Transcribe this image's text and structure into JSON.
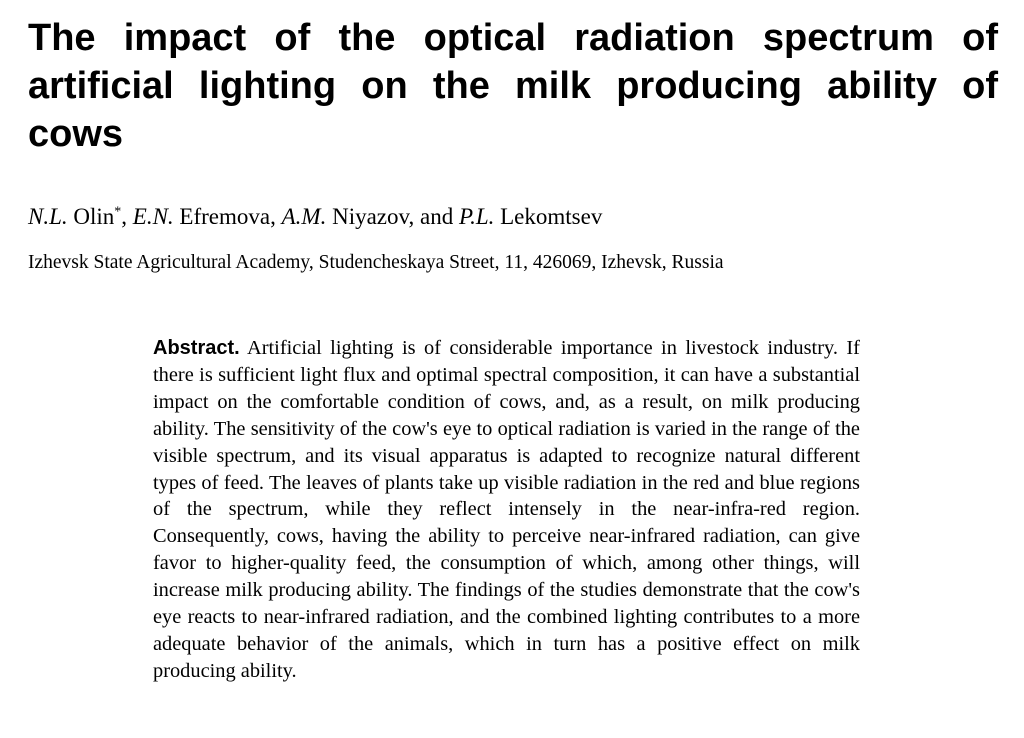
{
  "paper": {
    "title": "The impact of the optical radiation spectrum of artificial lighting on the milk producing ability of cows",
    "authors": [
      {
        "initials": "N.L.",
        "surname": " Olin",
        "mark": "*"
      },
      {
        "initials": "E.N.",
        "surname": " Efremova"
      },
      {
        "initials": "A.M.",
        "surname": " Niyazov"
      },
      {
        "initials": "P.L.",
        "surname": " Lekomtsev"
      }
    ],
    "author_separators": [
      ", ",
      ", ",
      ", and "
    ],
    "affiliation": "Izhevsk State Agricultural Academy, Studencheskaya Street, 11, 426069, Izhevsk, Russia",
    "abstract": {
      "label": "Abstract.",
      "text": "Artificial lighting is of considerable importance in livestock industry. If there is sufficient light flux and optimal spectral composition, it can have a substantial impact on the comfortable condition of cows, and, as a result, on milk producing ability. The sensitivity of the cow's eye to optical radiation is varied in the range of the visible spectrum, and its visual apparatus is adapted to recognize natural different types of feed. The leaves of plants take up visible radiation in the red and blue regions of the spectrum, while they reflect intensely in the near-infra-red region. Consequently, cows, having the ability to perceive near-infrared radiation, can give favor to higher-quality feed, the consumption of which, among other things, will increase milk producing ability. The findings of the studies demonstrate that the cow's eye reacts to near-infrared radiation, and the combined lighting contributes to a more adequate behavior of the animals, which in turn has a positive effect on milk producing ability."
    }
  }
}
